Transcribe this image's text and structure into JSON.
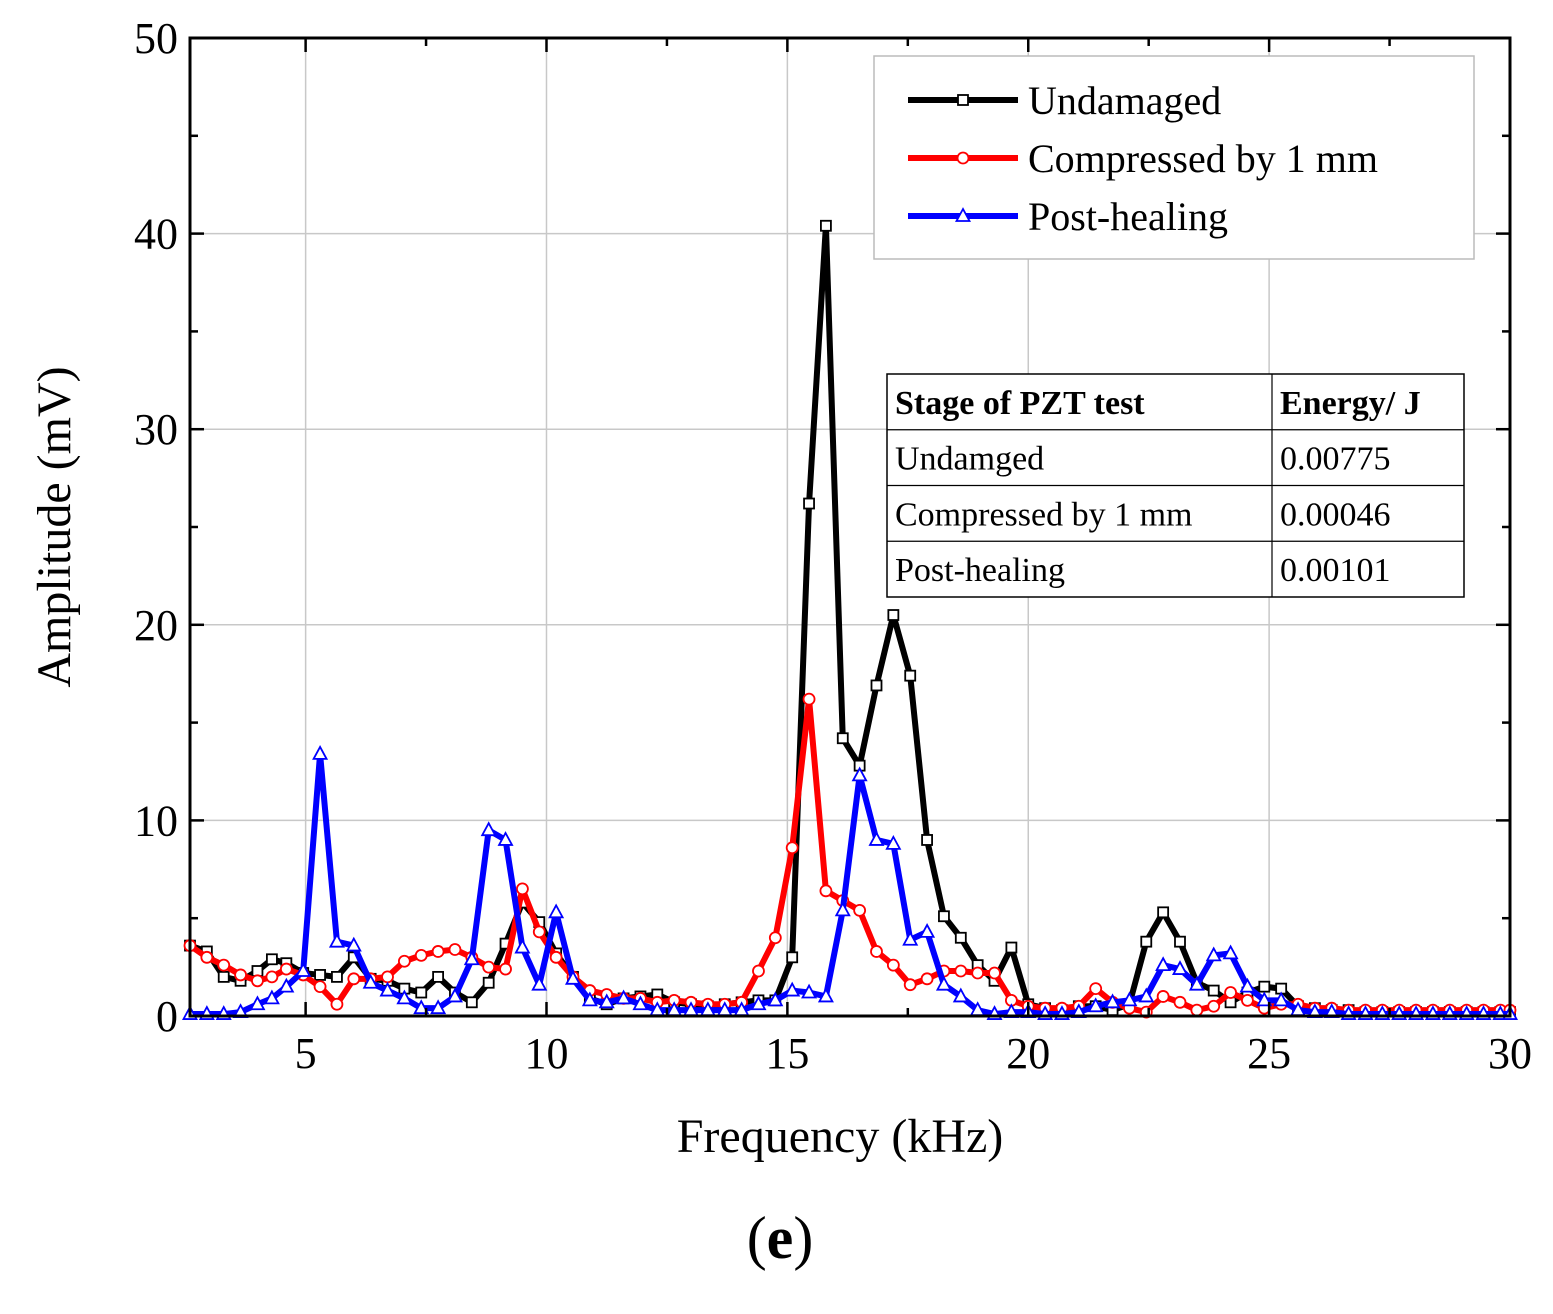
{
  "chart_data": {
    "type": "line",
    "title": "",
    "xlabel": "Frequency  (kHz)",
    "ylabel": "Amplitude  (mV)",
    "xlim": [
      2.6,
      30
    ],
    "ylim": [
      0,
      50
    ],
    "xticks": [
      5,
      10,
      15,
      20,
      25,
      30
    ],
    "yticks": [
      0,
      10,
      20,
      30,
      40,
      50
    ],
    "grid": true,
    "legend_position": "top-right",
    "series": [
      {
        "name": "Undamaged",
        "color": "#000000",
        "marker": "square",
        "points": [
          [
            2.6,
            3.6
          ],
          [
            2.95,
            3.3
          ],
          [
            3.3,
            2.0
          ],
          [
            3.65,
            1.8
          ],
          [
            4.0,
            2.3
          ],
          [
            4.3,
            2.9
          ],
          [
            4.6,
            2.7
          ],
          [
            4.95,
            2.2
          ],
          [
            5.3,
            2.1
          ],
          [
            5.65,
            2.0
          ],
          [
            6.0,
            3.0
          ],
          [
            6.35,
            1.9
          ],
          [
            6.7,
            1.8
          ],
          [
            7.05,
            1.4
          ],
          [
            7.4,
            1.2
          ],
          [
            7.75,
            2.0
          ],
          [
            8.1,
            1.2
          ],
          [
            8.45,
            0.7
          ],
          [
            8.8,
            1.7
          ],
          [
            9.15,
            3.7
          ],
          [
            9.5,
            5.8
          ],
          [
            9.85,
            4.8
          ],
          [
            10.2,
            3.2
          ],
          [
            10.55,
            2.0
          ],
          [
            10.9,
            0.9
          ],
          [
            11.25,
            0.6
          ],
          [
            11.6,
            0.9
          ],
          [
            11.95,
            1.0
          ],
          [
            12.3,
            1.1
          ],
          [
            12.65,
            0.7
          ],
          [
            13.0,
            0.6
          ],
          [
            13.35,
            0.5
          ],
          [
            13.7,
            0.6
          ],
          [
            14.05,
            0.7
          ],
          [
            14.4,
            0.8
          ],
          [
            14.75,
            0.8
          ],
          [
            15.1,
            3.0
          ],
          [
            15.45,
            26.2
          ],
          [
            15.8,
            40.4
          ],
          [
            16.15,
            14.2
          ],
          [
            16.5,
            12.8
          ],
          [
            16.85,
            16.9
          ],
          [
            17.2,
            20.5
          ],
          [
            17.55,
            17.4
          ],
          [
            17.9,
            9.0
          ],
          [
            18.25,
            5.1
          ],
          [
            18.6,
            4.0
          ],
          [
            18.95,
            2.6
          ],
          [
            19.3,
            1.8
          ],
          [
            19.65,
            3.5
          ],
          [
            20.0,
            0.6
          ],
          [
            20.35,
            0.4
          ],
          [
            20.7,
            0.3
          ],
          [
            21.05,
            0.5
          ],
          [
            21.4,
            0.5
          ],
          [
            21.75,
            0.3
          ],
          [
            22.1,
            0.6
          ],
          [
            22.45,
            3.8
          ],
          [
            22.8,
            5.3
          ],
          [
            23.15,
            3.8
          ],
          [
            23.5,
            1.7
          ],
          [
            23.85,
            1.3
          ],
          [
            24.2,
            0.7
          ],
          [
            24.55,
            1.2
          ],
          [
            24.9,
            1.5
          ],
          [
            25.25,
            1.4
          ],
          [
            25.6,
            0.5
          ],
          [
            25.95,
            0.4
          ],
          [
            26.3,
            0.3
          ],
          [
            26.65,
            0.3
          ],
          [
            27.0,
            0.2
          ],
          [
            27.35,
            0.2
          ],
          [
            27.7,
            0.2
          ],
          [
            28.05,
            0.2
          ],
          [
            28.4,
            0.2
          ],
          [
            28.75,
            0.2
          ],
          [
            29.1,
            0.2
          ],
          [
            29.45,
            0.2
          ],
          [
            29.8,
            0.2
          ],
          [
            30.0,
            0.2
          ]
        ]
      },
      {
        "name": "Compressed by 1 mm",
        "color": "#ff0000",
        "marker": "circle",
        "points": [
          [
            2.6,
            3.6
          ],
          [
            2.95,
            3.0
          ],
          [
            3.3,
            2.6
          ],
          [
            3.65,
            2.1
          ],
          [
            4.0,
            1.8
          ],
          [
            4.3,
            2.0
          ],
          [
            4.6,
            2.4
          ],
          [
            4.95,
            2.1
          ],
          [
            5.3,
            1.5
          ],
          [
            5.65,
            0.6
          ],
          [
            6.0,
            1.9
          ],
          [
            6.35,
            1.9
          ],
          [
            6.7,
            2.0
          ],
          [
            7.05,
            2.8
          ],
          [
            7.4,
            3.1
          ],
          [
            7.75,
            3.3
          ],
          [
            8.1,
            3.4
          ],
          [
            8.45,
            3.0
          ],
          [
            8.8,
            2.5
          ],
          [
            9.15,
            2.4
          ],
          [
            9.5,
            6.5
          ],
          [
            9.85,
            4.3
          ],
          [
            10.2,
            3.0
          ],
          [
            10.55,
            2.0
          ],
          [
            10.9,
            1.3
          ],
          [
            11.25,
            1.1
          ],
          [
            11.6,
            0.9
          ],
          [
            11.95,
            0.9
          ],
          [
            12.3,
            0.7
          ],
          [
            12.65,
            0.8
          ],
          [
            13.0,
            0.7
          ],
          [
            13.35,
            0.6
          ],
          [
            13.7,
            0.6
          ],
          [
            14.05,
            0.7
          ],
          [
            14.4,
            2.3
          ],
          [
            14.75,
            4.0
          ],
          [
            15.1,
            8.6
          ],
          [
            15.45,
            16.2
          ],
          [
            15.8,
            6.4
          ],
          [
            16.15,
            5.9
          ],
          [
            16.5,
            5.4
          ],
          [
            16.85,
            3.3
          ],
          [
            17.2,
            2.6
          ],
          [
            17.55,
            1.6
          ],
          [
            17.9,
            1.9
          ],
          [
            18.25,
            2.3
          ],
          [
            18.6,
            2.3
          ],
          [
            18.95,
            2.2
          ],
          [
            19.3,
            2.2
          ],
          [
            19.65,
            0.8
          ],
          [
            20.0,
            0.5
          ],
          [
            20.35,
            0.4
          ],
          [
            20.7,
            0.4
          ],
          [
            21.05,
            0.5
          ],
          [
            21.4,
            1.4
          ],
          [
            21.75,
            0.7
          ],
          [
            22.1,
            0.4
          ],
          [
            22.45,
            0.2
          ],
          [
            22.8,
            1.0
          ],
          [
            23.15,
            0.7
          ],
          [
            23.5,
            0.3
          ],
          [
            23.85,
            0.5
          ],
          [
            24.2,
            1.2
          ],
          [
            24.55,
            0.8
          ],
          [
            24.9,
            0.4
          ],
          [
            25.25,
            0.6
          ],
          [
            25.6,
            0.6
          ],
          [
            25.95,
            0.4
          ],
          [
            26.3,
            0.4
          ],
          [
            26.65,
            0.3
          ],
          [
            27.0,
            0.3
          ],
          [
            27.35,
            0.3
          ],
          [
            27.7,
            0.3
          ],
          [
            28.05,
            0.3
          ],
          [
            28.4,
            0.3
          ],
          [
            28.75,
            0.3
          ],
          [
            29.1,
            0.3
          ],
          [
            29.45,
            0.3
          ],
          [
            29.8,
            0.3
          ],
          [
            30.0,
            0.3
          ]
        ]
      },
      {
        "name": "Post-healing",
        "color": "#0000ff",
        "marker": "triangle",
        "points": [
          [
            2.6,
            0.1
          ],
          [
            2.95,
            0.1
          ],
          [
            3.3,
            0.1
          ],
          [
            3.65,
            0.2
          ],
          [
            4.0,
            0.6
          ],
          [
            4.3,
            0.9
          ],
          [
            4.6,
            1.5
          ],
          [
            4.95,
            2.3
          ],
          [
            5.3,
            13.4
          ],
          [
            5.65,
            3.8
          ],
          [
            6.0,
            3.6
          ],
          [
            6.35,
            1.7
          ],
          [
            6.7,
            1.3
          ],
          [
            7.05,
            0.9
          ],
          [
            7.4,
            0.4
          ],
          [
            7.75,
            0.4
          ],
          [
            8.1,
            1.0
          ],
          [
            8.45,
            2.9
          ],
          [
            8.8,
            9.5
          ],
          [
            9.15,
            9.0
          ],
          [
            9.5,
            3.5
          ],
          [
            9.85,
            1.6
          ],
          [
            10.2,
            5.3
          ],
          [
            10.55,
            1.9
          ],
          [
            10.9,
            0.8
          ],
          [
            11.25,
            0.7
          ],
          [
            11.6,
            0.9
          ],
          [
            11.95,
            0.6
          ],
          [
            12.3,
            0.3
          ],
          [
            12.65,
            0.3
          ],
          [
            13.0,
            0.3
          ],
          [
            13.35,
            0.3
          ],
          [
            13.7,
            0.3
          ],
          [
            14.05,
            0.3
          ],
          [
            14.4,
            0.6
          ],
          [
            14.75,
            0.8
          ],
          [
            15.1,
            1.3
          ],
          [
            15.45,
            1.2
          ],
          [
            15.8,
            1.0
          ],
          [
            16.15,
            5.4
          ],
          [
            16.5,
            12.3
          ],
          [
            16.85,
            9.0
          ],
          [
            17.2,
            8.8
          ],
          [
            17.55,
            3.9
          ],
          [
            17.9,
            4.3
          ],
          [
            18.25,
            1.6
          ],
          [
            18.6,
            1.0
          ],
          [
            18.95,
            0.3
          ],
          [
            19.3,
            0.1
          ],
          [
            19.65,
            0.2
          ],
          [
            20.0,
            0.2
          ],
          [
            20.35,
            0.1
          ],
          [
            20.7,
            0.1
          ],
          [
            21.05,
            0.2
          ],
          [
            21.4,
            0.5
          ],
          [
            21.75,
            0.7
          ],
          [
            22.1,
            0.8
          ],
          [
            22.45,
            1.0
          ],
          [
            22.8,
            2.6
          ],
          [
            23.15,
            2.4
          ],
          [
            23.5,
            1.6
          ],
          [
            23.85,
            3.1
          ],
          [
            24.2,
            3.2
          ],
          [
            24.55,
            1.5
          ],
          [
            24.9,
            0.8
          ],
          [
            25.25,
            0.8
          ],
          [
            25.6,
            0.3
          ],
          [
            25.95,
            0.2
          ],
          [
            26.3,
            0.2
          ],
          [
            26.65,
            0.1
          ],
          [
            27.0,
            0.1
          ],
          [
            27.35,
            0.1
          ],
          [
            27.7,
            0.1
          ],
          [
            28.05,
            0.1
          ],
          [
            28.4,
            0.1
          ],
          [
            28.75,
            0.1
          ],
          [
            29.1,
            0.1
          ],
          [
            29.45,
            0.1
          ],
          [
            29.8,
            0.1
          ],
          [
            30.0,
            0.1
          ]
        ]
      }
    ],
    "inset_table": {
      "headers": [
        "Stage of PZT test",
        "Energy/ J"
      ],
      "rows": [
        [
          "Undamged",
          "0.00775"
        ],
        [
          "Compressed by 1 mm",
          "0.00046"
        ],
        [
          "Post-healing",
          "0.00101"
        ]
      ]
    }
  },
  "panel_label": {
    "open": "(",
    "letter": "e",
    "close": ")"
  }
}
